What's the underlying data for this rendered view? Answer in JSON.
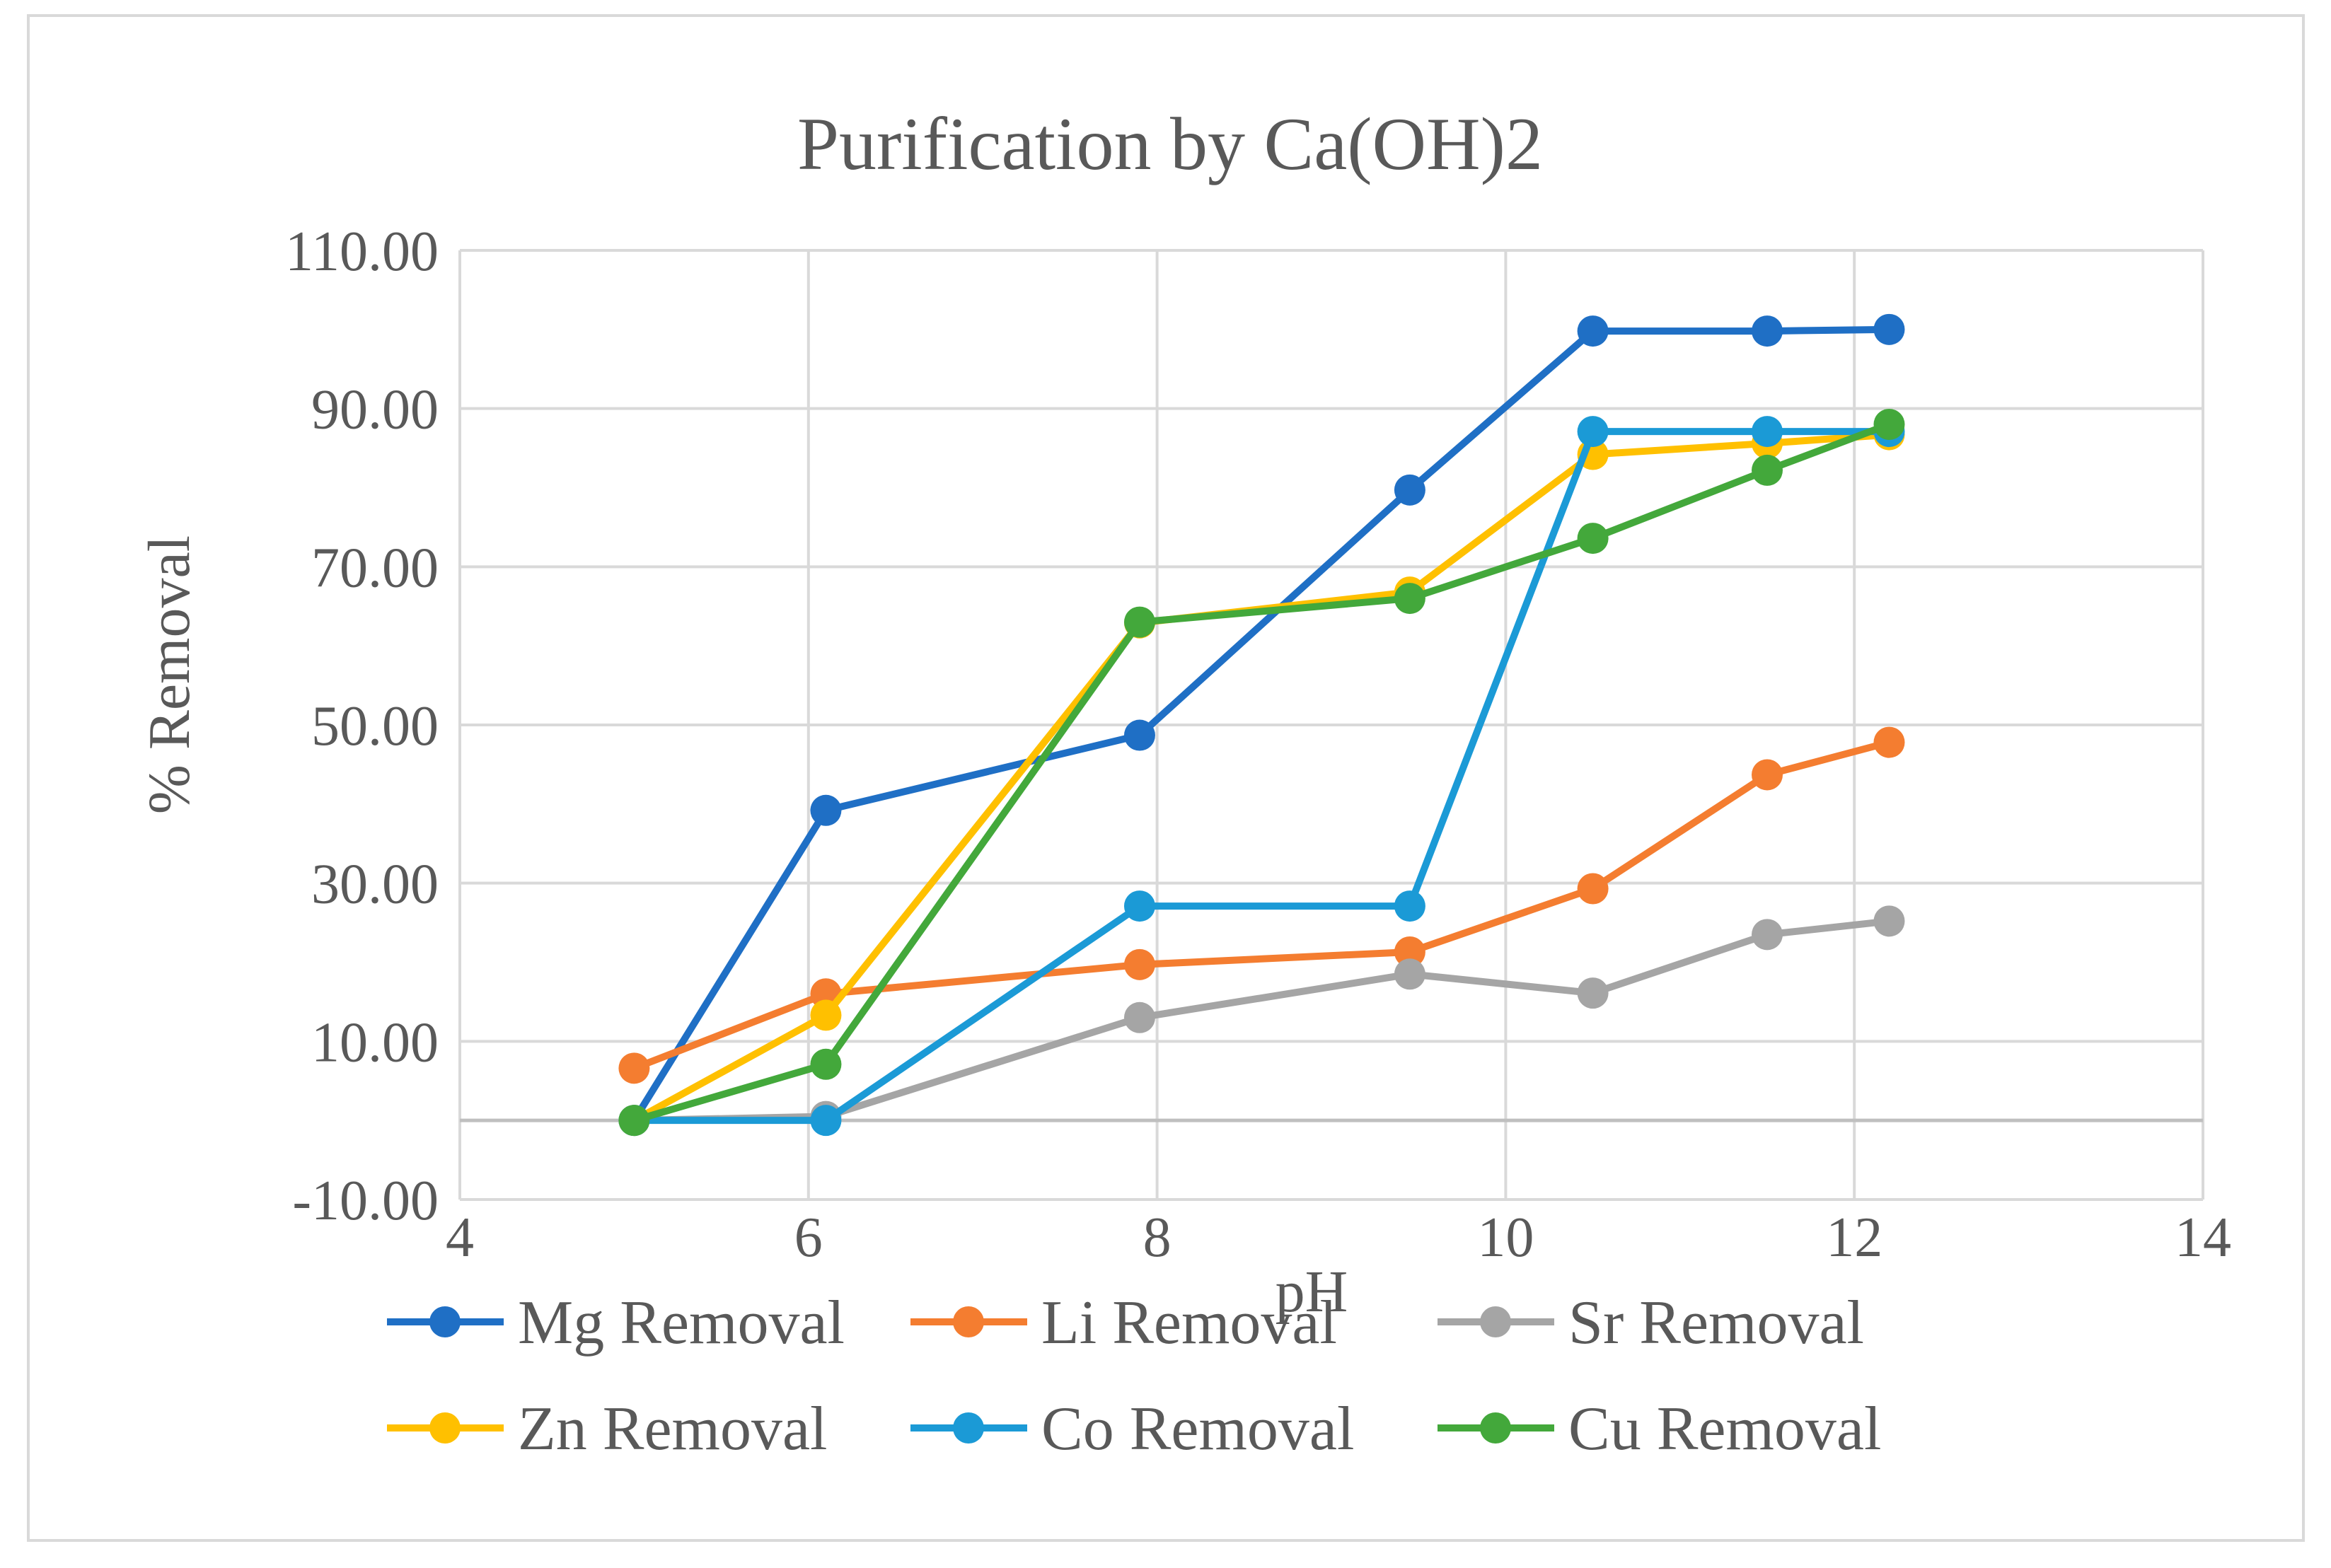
{
  "chart_data": {
    "type": "line",
    "title": "Purification by Ca(OH)2",
    "xlabel": "pH",
    "ylabel": "% Removal",
    "xlim": [
      4,
      14
    ],
    "ylim": [
      -10,
      110
    ],
    "x_ticks": [
      "4",
      "6",
      "8",
      "10",
      "12",
      "14"
    ],
    "y_ticks": [
      "-10.00",
      "10.00",
      "30.00",
      "50.00",
      "70.00",
      "90.00",
      "110.00"
    ],
    "grid": true,
    "legend_position": "bottom",
    "series": [
      {
        "name": "Mg Removal",
        "color": "#1f6fc5",
        "points": [
          [
            5,
            0
          ],
          [
            6.1,
            39.2
          ],
          [
            7.9,
            48.7
          ],
          [
            9.45,
            79.7
          ],
          [
            10.5,
            99.8
          ],
          [
            11.5,
            99.8
          ],
          [
            12.2,
            100
          ]
        ]
      },
      {
        "name": "Li Removal",
        "color": "#f47d30",
        "points": [
          [
            5,
            6.6
          ],
          [
            6.1,
            16.0
          ],
          [
            7.9,
            19.7
          ],
          [
            9.45,
            21.3
          ],
          [
            10.5,
            29.3
          ],
          [
            11.5,
            43.7
          ],
          [
            12.2,
            47.8
          ]
        ]
      },
      {
        "name": "Sr Removal",
        "color": "#a5a5a5",
        "points": [
          [
            5,
            0
          ],
          [
            6.1,
            0.5
          ],
          [
            7.9,
            13.0
          ],
          [
            9.45,
            18.5
          ],
          [
            10.5,
            16.1
          ],
          [
            11.5,
            23.5
          ],
          [
            12.2,
            25.2
          ]
        ]
      },
      {
        "name": "Zn Removal",
        "color": "#ffc000",
        "points": [
          [
            5,
            0
          ],
          [
            6.1,
            13.3
          ],
          [
            7.9,
            62.9
          ],
          [
            9.45,
            66.8
          ],
          [
            10.5,
            84.2
          ],
          [
            11.5,
            85.6
          ],
          [
            12.2,
            86.7
          ]
        ]
      },
      {
        "name": "Co Removal",
        "color": "#1b9ad6",
        "points": [
          [
            5,
            0
          ],
          [
            6.1,
            0
          ],
          [
            7.9,
            27.1
          ],
          [
            9.45,
            27.1
          ],
          [
            10.5,
            87.1
          ],
          [
            11.5,
            87.1
          ],
          [
            12.2,
            87.1
          ]
        ]
      },
      {
        "name": "Cu Removal",
        "color": "#43a83b",
        "points": [
          [
            5,
            0
          ],
          [
            6.1,
            7.1
          ],
          [
            7.9,
            63.0
          ],
          [
            9.45,
            66.0
          ],
          [
            10.5,
            73.6
          ],
          [
            11.5,
            82.2
          ],
          [
            12.2,
            88.0
          ]
        ]
      }
    ]
  }
}
